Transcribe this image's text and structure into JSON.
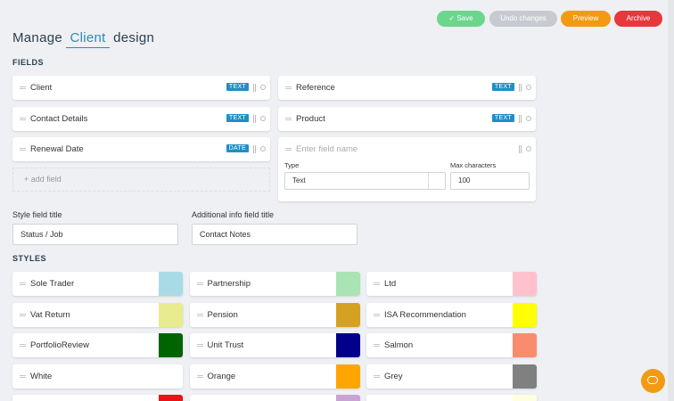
{
  "header": {
    "buttons": [
      "Save",
      "Undo changes",
      "Preview",
      "Archive"
    ],
    "title": {
      "prefix": "Manage",
      "entity": "Client",
      "suffix": "design"
    }
  },
  "fields": {
    "heading": "FIELDS",
    "items": [
      {
        "label": "Client",
        "type": "TEXT"
      },
      {
        "label": "Reference",
        "type": "TEXT"
      },
      {
        "label": "Contact Details",
        "type": "TEXT"
      },
      {
        "label": "Product",
        "type": "TEXT"
      },
      {
        "label": "Renewal Date",
        "type": "DATE"
      }
    ],
    "new_field": {
      "placeholder": "Enter field name",
      "type_label": "Type",
      "type_value": "Text",
      "max_label": "Max characters",
      "max_value": 100
    },
    "add_field": "+ add field"
  },
  "titles": {
    "style_label": "Style field title",
    "style_value": "Status / Job",
    "info_label": "Additional info field title",
    "info_value": "Contact Notes"
  },
  "styles": {
    "heading": "STYLES",
    "items": [
      {
        "name": "Sole Trader",
        "color": "#a9dbe6"
      },
      {
        "name": "Partnership",
        "color": "#a8e4b4"
      },
      {
        "name": "Ltd",
        "color": "#ffc2cc"
      },
      {
        "name": "Vat Return",
        "color": "#e8ec8e"
      },
      {
        "name": "Pension",
        "color": "#d4a122"
      },
      {
        "name": "ISA Recommendation",
        "color": "#ffff00"
      },
      {
        "name": "PortfolioReview",
        "color": "#006400"
      },
      {
        "name": "Unit Trust",
        "color": "#00008b"
      },
      {
        "name": "Salmon",
        "color": "#fa8c6e"
      },
      {
        "name": "White",
        "color": "#ffffff"
      },
      {
        "name": "Orange",
        "color": "#ffa500"
      },
      {
        "name": "Grey",
        "color": "#808080"
      },
      {
        "color": "#e81414"
      },
      {
        "color": "#c9a3d3"
      },
      {
        "color": "#ffffe0"
      }
    ]
  }
}
